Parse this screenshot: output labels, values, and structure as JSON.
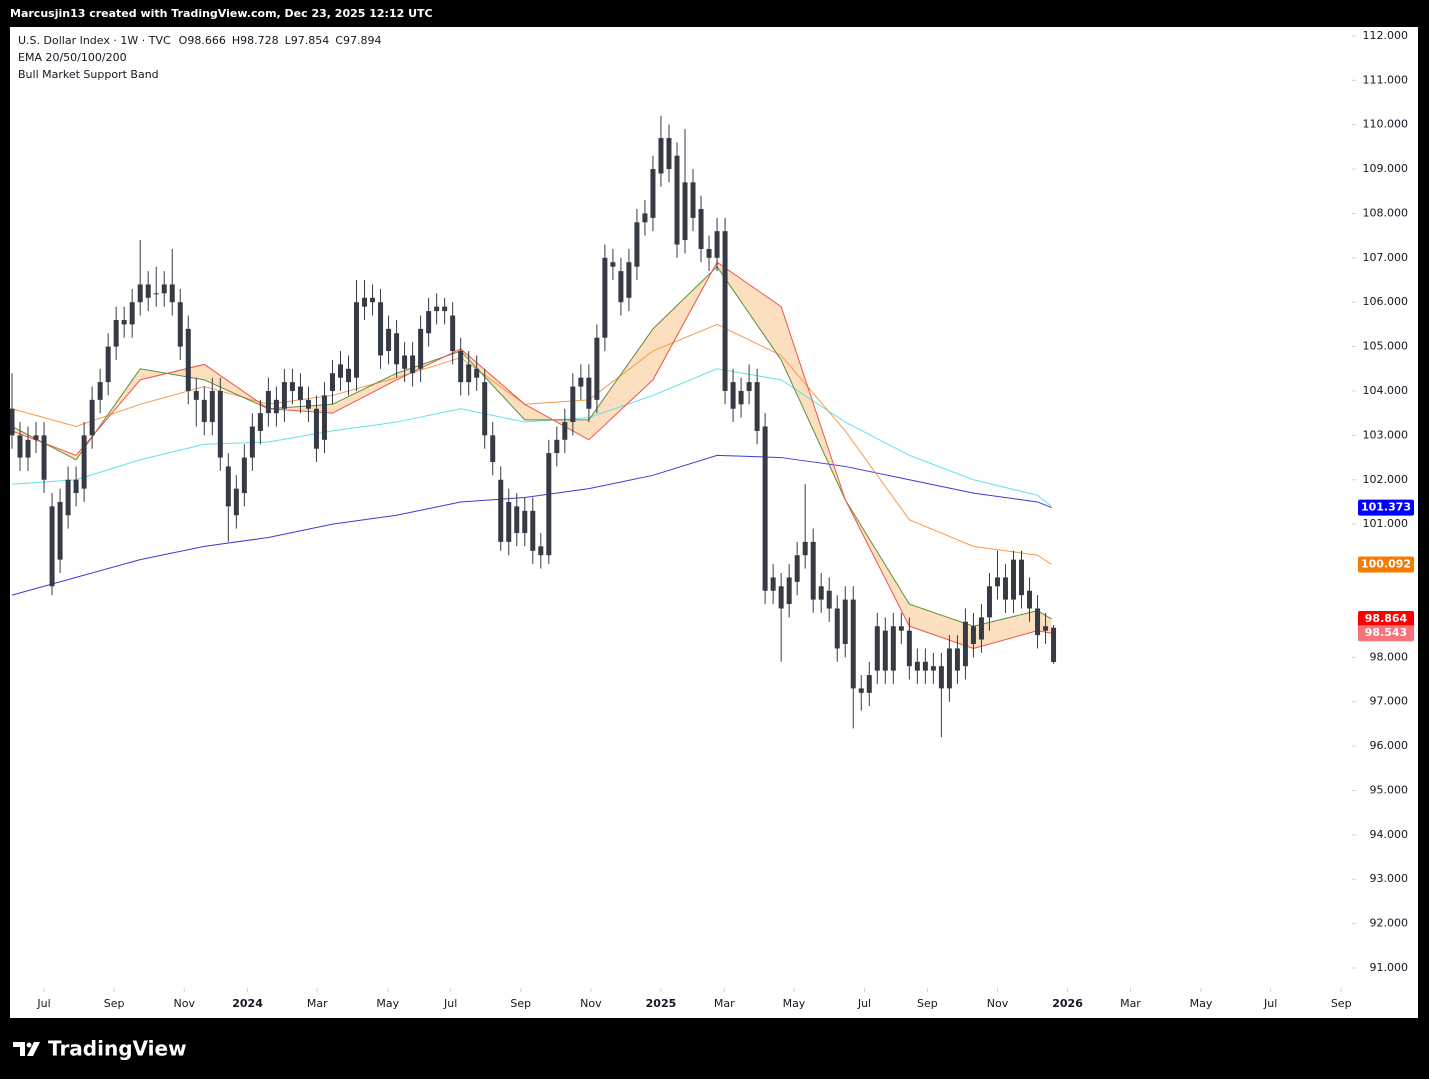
{
  "header": {
    "attribution": "Marcusjin13 created with TradingView.com, Dec 23, 2025 12:12 UTC",
    "logo": "TradingView"
  },
  "chart_data": {
    "type": "candlestick",
    "legend": {
      "symbol": "U.S. Dollar Index · 1W · TVC",
      "ohlc": [
        {
          "label": "O",
          "value": 98.666
        },
        {
          "label": "H",
          "value": 98.728
        },
        {
          "label": "L",
          "value": 97.854
        },
        {
          "label": "C",
          "value": 97.894
        }
      ],
      "indicators": [
        "EMA 20/50/100/200",
        "Bull Market Support Band"
      ]
    },
    "candle_color": "#363a45",
    "open": [
      103.6,
      103.0,
      102.5,
      102.9,
      103.0,
      101.4,
      100.2,
      101.2,
      102.0,
      101.8,
      103.0,
      103.8,
      104.2,
      105.0,
      105.6,
      105.5,
      106.0,
      106.4,
      106.2,
      106.2,
      106.4,
      106.0,
      105.4,
      104.0,
      103.8,
      103.3,
      104.0,
      102.3,
      101.8,
      101.7,
      102.5,
      103.1,
      103.5,
      103.8,
      103.6,
      104.2,
      104.1,
      103.8,
      103.6,
      102.9,
      104.0,
      104.3,
      104.5,
      104.3,
      105.9,
      106.1,
      106.0,
      104.9,
      105.3,
      104.5,
      104.8,
      104.5,
      105.3,
      105.8,
      105.9,
      105.7,
      104.9,
      104.2,
      104.5,
      104.2,
      103.0,
      102.0,
      100.6,
      101.4,
      100.8,
      101.3,
      100.5,
      100.3,
      102.6,
      102.9,
      103.3,
      104.1,
      104.3,
      103.8,
      105.2,
      106.9,
      106.7,
      106.1,
      106.8,
      107.8,
      107.9,
      108.9,
      109.7,
      109.3,
      107.4,
      108.7,
      108.1,
      107.2,
      107.0,
      107.6,
      104.2,
      103.7,
      104.0,
      104.2,
      103.2,
      99.5,
      99.6,
      99.2,
      99.7,
      100.3,
      100.6,
      99.3,
      99.5,
      99.1,
      98.3,
      99.3,
      97.3,
      97.2,
      97.7,
      98.6,
      97.7,
      98.7,
      98.6,
      97.7,
      97.9,
      97.7,
      97.8,
      97.3,
      98.2,
      97.8,
      98.7,
      98.4,
      98.9,
      99.6,
      99.8,
      99.3,
      100.2,
      99.5,
      99.1,
      98.6,
      98.666
    ],
    "high": [
      104.4,
      103.3,
      103.2,
      103.3,
      103.3,
      101.7,
      101.8,
      102.3,
      102.3,
      103.3,
      104.1,
      104.5,
      105.3,
      105.9,
      105.9,
      106.3,
      107.4,
      106.7,
      106.8,
      106.7,
      107.2,
      106.3,
      105.7,
      104.3,
      104.1,
      104.3,
      104.3,
      102.6,
      102.1,
      102.8,
      103.5,
      103.8,
      104.3,
      104.1,
      104.5,
      104.5,
      104.4,
      104.1,
      103.9,
      104.2,
      104.7,
      104.9,
      104.8,
      106.5,
      106.5,
      106.4,
      106.3,
      105.7,
      105.6,
      105.1,
      105.1,
      105.7,
      106.1,
      106.2,
      106.1,
      106.0,
      105.2,
      104.9,
      104.8,
      104.5,
      103.3,
      102.3,
      101.8,
      101.7,
      101.6,
      101.6,
      100.8,
      102.9,
      103.2,
      103.6,
      104.4,
      104.6,
      104.6,
      105.5,
      107.3,
      107.2,
      107.0,
      107.2,
      108.1,
      108.3,
      109.3,
      110.2,
      110.0,
      109.6,
      109.9,
      109.0,
      108.4,
      107.5,
      107.9,
      107.9,
      104.5,
      104.3,
      104.6,
      104.5,
      103.5,
      100.1,
      99.9,
      100.1,
      100.6,
      101.9,
      100.9,
      99.9,
      99.8,
      99.4,
      99.6,
      99.6,
      97.6,
      97.9,
      99.0,
      98.9,
      99.0,
      99.0,
      98.9,
      98.2,
      98.2,
      98.1,
      98.1,
      98.5,
      98.5,
      99.1,
      99.0,
      99.2,
      99.9,
      100.4,
      100.1,
      100.4,
      100.4,
      99.8,
      99.4,
      99.0,
      98.728
    ],
    "low": [
      102.7,
      102.2,
      102.2,
      102.6,
      101.7,
      99.4,
      99.9,
      100.9,
      101.4,
      101.5,
      102.7,
      103.5,
      103.9,
      104.7,
      105.2,
      105.2,
      105.7,
      105.8,
      105.9,
      105.9,
      105.7,
      104.7,
      103.7,
      103.2,
      103.0,
      103.0,
      102.2,
      100.6,
      100.9,
      101.4,
      102.2,
      102.8,
      103.2,
      103.2,
      103.3,
      103.7,
      103.5,
      103.3,
      102.4,
      102.6,
      103.7,
      104.0,
      103.9,
      104.0,
      105.6,
      105.7,
      104.5,
      104.6,
      104.3,
      104.2,
      104.1,
      104.2,
      105.0,
      105.5,
      105.5,
      104.6,
      103.9,
      103.9,
      104.0,
      102.7,
      102.1,
      100.4,
      100.3,
      100.5,
      100.5,
      100.1,
      100.0,
      100.1,
      102.3,
      102.6,
      103.0,
      103.8,
      103.3,
      103.5,
      104.9,
      106.5,
      105.7,
      105.8,
      106.5,
      107.5,
      107.6,
      108.6,
      108.7,
      107.0,
      107.1,
      107.6,
      106.9,
      106.7,
      106.7,
      103.7,
      103.3,
      103.4,
      103.7,
      102.8,
      99.2,
      99.2,
      97.9,
      98.9,
      99.4,
      100.0,
      99.0,
      99.0,
      98.8,
      97.9,
      98.0,
      96.4,
      96.8,
      96.9,
      97.4,
      97.4,
      97.4,
      98.3,
      97.5,
      97.4,
      97.4,
      97.4,
      96.2,
      97.0,
      97.4,
      97.5,
      98.0,
      98.1,
      98.6,
      99.3,
      99.0,
      99.0,
      99.1,
      98.8,
      98.2,
      98.3,
      97.854
    ],
    "close": [
      103.0,
      102.5,
      102.9,
      103.0,
      102.0,
      99.6,
      101.5,
      102.0,
      101.7,
      103.0,
      103.8,
      104.2,
      105.0,
      105.6,
      105.5,
      106.0,
      106.4,
      106.1,
      106.2,
      106.4,
      106.0,
      105.0,
      104.0,
      103.8,
      103.3,
      104.0,
      102.5,
      101.4,
      101.2,
      102.5,
      103.2,
      103.5,
      104.0,
      103.5,
      104.2,
      104.0,
      103.8,
      103.6,
      102.7,
      103.9,
      104.4,
      104.6,
      104.2,
      106.0,
      106.1,
      106.0,
      104.8,
      105.4,
      104.6,
      104.8,
      104.4,
      105.4,
      105.8,
      105.9,
      105.8,
      104.9,
      104.2,
      104.6,
      104.3,
      103.0,
      102.4,
      100.6,
      101.5,
      100.8,
      101.3,
      100.4,
      100.3,
      102.6,
      102.9,
      103.3,
      104.1,
      104.3,
      103.6,
      105.2,
      107.0,
      106.8,
      106.0,
      106.9,
      107.8,
      108.0,
      109.0,
      109.7,
      109.0,
      107.3,
      108.7,
      107.9,
      107.2,
      107.0,
      107.6,
      104.0,
      103.6,
      104.0,
      104.2,
      103.1,
      99.5,
      99.8,
      99.1,
      99.8,
      100.3,
      100.6,
      99.3,
      99.6,
      99.1,
      98.2,
      99.3,
      97.3,
      97.2,
      97.6,
      98.7,
      97.7,
      98.7,
      98.6,
      97.8,
      97.9,
      97.7,
      97.8,
      97.3,
      98.2,
      97.7,
      98.8,
      98.3,
      98.9,
      99.6,
      99.8,
      99.3,
      100.2,
      99.4,
      99.1,
      98.5,
      98.7,
      97.894
    ],
    "lines": [
      {
        "color": "#3c3cd8",
        "x": [
          0,
          8,
          16,
          24,
          32,
          40,
          48,
          56,
          64,
          72,
          80,
          88,
          96,
          104,
          112,
          120,
          128,
          129.75
        ],
        "values": [
          99.4,
          99.8,
          100.2,
          100.5,
          100.7,
          101.0,
          101.2,
          101.5,
          101.6,
          101.8,
          102.1,
          102.55,
          102.5,
          102.3,
          102.0,
          101.7,
          101.5,
          101.373
        ]
      },
      {
        "color": "#5fe3ea",
        "x": [
          0,
          8,
          16,
          24,
          32,
          40,
          48,
          56,
          64,
          72,
          80,
          88,
          96,
          104,
          112,
          120,
          128,
          129.75
        ],
        "values": [
          101.9,
          102.0,
          102.45,
          102.8,
          102.85,
          103.1,
          103.3,
          103.6,
          103.3,
          103.4,
          103.9,
          104.5,
          104.25,
          103.3,
          102.55,
          102.0,
          101.65,
          101.4
        ]
      },
      {
        "color": "#f59a4c",
        "x": [
          0,
          8,
          16,
          24,
          32,
          40,
          48,
          56,
          64,
          72,
          80,
          88,
          96,
          104,
          112,
          120,
          128,
          129.75
        ],
        "values": [
          103.6,
          103.2,
          103.7,
          104.1,
          103.7,
          103.9,
          104.3,
          104.75,
          103.7,
          103.8,
          104.9,
          105.5,
          104.8,
          103.1,
          101.1,
          100.5,
          100.3,
          100.092
        ]
      }
    ],
    "band": {
      "fill": "#fbd9b3",
      "series": [
        {
          "color": "#5f8f3e",
          "x": [
            0,
            8,
            16,
            24,
            32,
            40,
            48,
            56,
            64,
            72,
            80,
            88,
            96,
            104,
            112,
            120,
            128,
            129.75
          ],
          "values": [
            103.2,
            102.45,
            104.5,
            104.25,
            103.6,
            103.7,
            104.4,
            104.9,
            103.35,
            103.35,
            105.4,
            106.8,
            104.7,
            101.55,
            99.2,
            98.7,
            99.05,
            98.864
          ]
        },
        {
          "color": "#f0524b",
          "x": [
            0,
            8,
            16,
            24,
            32,
            40,
            48,
            56,
            64,
            72,
            80,
            88,
            96,
            104,
            112,
            120,
            128,
            129.75
          ],
          "values": [
            103.1,
            102.55,
            104.25,
            104.6,
            103.6,
            103.5,
            104.25,
            104.95,
            103.7,
            102.9,
            104.25,
            106.9,
            105.9,
            101.55,
            98.7,
            98.2,
            98.6,
            98.543
          ]
        }
      ]
    },
    "price_tags": [
      {
        "value": 101.373,
        "color": "#0000ff"
      },
      {
        "value": 100.092,
        "color": "#f57c00"
      },
      {
        "value": 98.864,
        "color": "#ff0000"
      },
      {
        "value": 98.543,
        "color": "#f7737a"
      }
    ],
    "ylim": [
      90.55,
      112.2
    ],
    "yticks": [
      {
        "value": 91,
        "label": "91.000"
      },
      {
        "value": 92,
        "label": "92.000"
      },
      {
        "value": 93,
        "label": "93.000"
      },
      {
        "value": 94,
        "label": "94.000"
      },
      {
        "value": 95,
        "label": "95.000"
      },
      {
        "value": 96,
        "label": "96.000"
      },
      {
        "value": 97,
        "label": "97.000"
      },
      {
        "value": 98,
        "label": "98.000"
      },
      {
        "value": 101,
        "label": "101.000"
      },
      {
        "value": 102,
        "label": "102.000"
      },
      {
        "value": 103,
        "label": "103.000"
      },
      {
        "value": 104,
        "label": "104.000"
      },
      {
        "value": 105,
        "label": "105.000"
      },
      {
        "value": 106,
        "label": "106.000"
      },
      {
        "value": 107,
        "label": "107.000"
      },
      {
        "value": 108,
        "label": "108.000"
      },
      {
        "value": 109,
        "label": "109.000"
      },
      {
        "value": 110,
        "label": "110.000"
      },
      {
        "value": 111,
        "label": "111.000"
      },
      {
        "value": 112,
        "label": "112.000"
      }
    ],
    "xlim": [
      -0.25,
      167.25
    ],
    "xticks": [
      {
        "value": 4,
        "label": "Jul"
      },
      {
        "value": 12.75,
        "label": "Sep"
      },
      {
        "value": 21.5,
        "label": "Nov"
      },
      {
        "value": 29.4,
        "label": "2024"
      },
      {
        "value": 38.1,
        "label": "Mar"
      },
      {
        "value": 46.9,
        "label": "May"
      },
      {
        "value": 54.75,
        "label": "Jul"
      },
      {
        "value": 63.5,
        "label": "Sep"
      },
      {
        "value": 72.25,
        "label": "Nov"
      },
      {
        "value": 81,
        "label": "2025"
      },
      {
        "value": 88.9,
        "label": "Mar"
      },
      {
        "value": 97.6,
        "label": "May"
      },
      {
        "value": 106.4,
        "label": "Jul"
      },
      {
        "value": 114.25,
        "label": "Sep"
      },
      {
        "value": 123,
        "label": "Nov"
      },
      {
        "value": 131.75,
        "label": "2026"
      },
      {
        "value": 139.6,
        "label": "Mar"
      },
      {
        "value": 148.4,
        "label": "May"
      },
      {
        "value": 157.1,
        "label": "Jul"
      },
      {
        "value": 165.9,
        "label": "Sep"
      }
    ]
  }
}
